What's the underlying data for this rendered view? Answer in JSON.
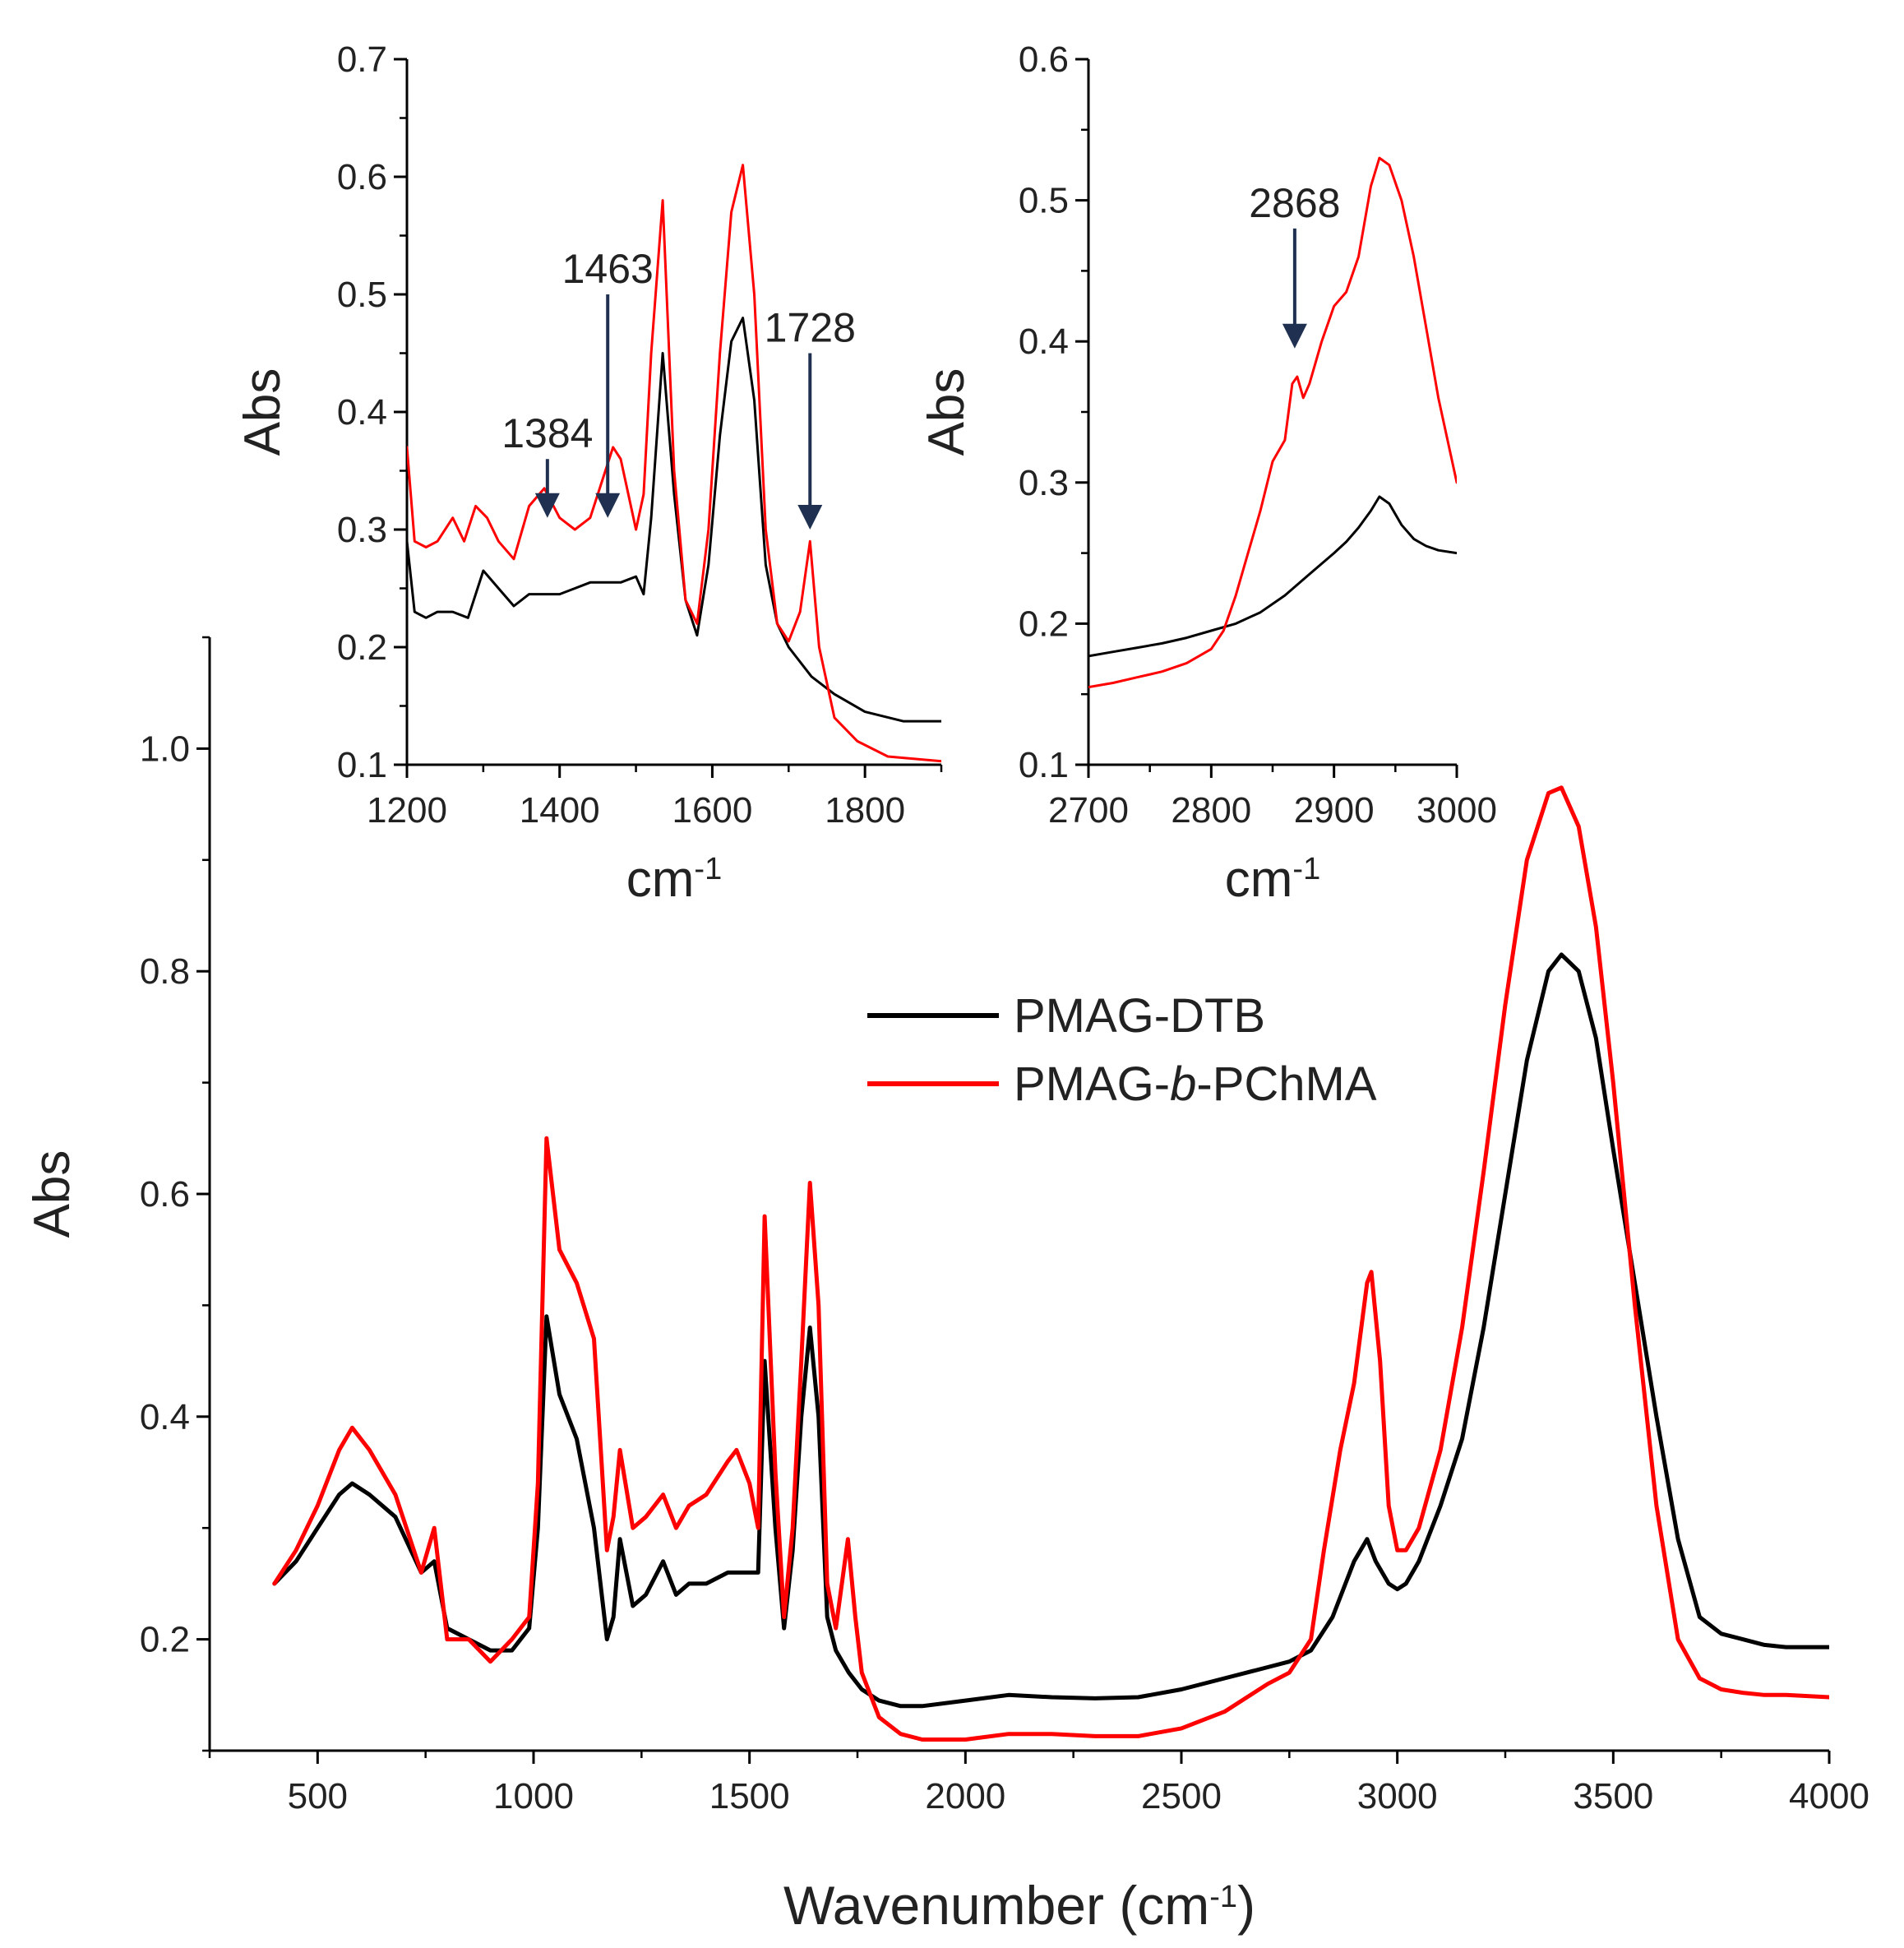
{
  "colors": {
    "PMAG-DTB": "#000000",
    "PMAG-b-PChMA": "#ff0000",
    "arrow": "#1f3050"
  },
  "chart_data": [
    {
      "id": "main",
      "type": "line",
      "title": "",
      "xlabel": "Wavenumber (cm",
      "xlabel_sup": "-1",
      "xlabel_close": ")",
      "ylabel": "Abs",
      "xlim": [
        250,
        4000
      ],
      "ylim": [
        0.1,
        1.1
      ],
      "xticks": [
        500,
        1000,
        1500,
        2000,
        2500,
        3000,
        3500,
        4000
      ],
      "xticklabels": [
        "500",
        "1000",
        "1500",
        "2000",
        "2500",
        "3000",
        "3500",
        "4000"
      ],
      "yticks": [
        0.2,
        0.4,
        0.6,
        0.8,
        1.0
      ],
      "yticklabels": [
        "0.2",
        "0.4",
        "0.6",
        "0.8",
        "1.0"
      ],
      "legend": {
        "position": "center-right",
        "entries": [
          {
            "series": "PMAG-DTB",
            "parts": [
              "PMAG-DTB"
            ]
          },
          {
            "series": "PMAG-b-PChMA",
            "parts": [
              "PMAG-",
              "b",
              "-PChMA"
            ]
          }
        ]
      },
      "series": [
        {
          "name": "PMAG-DTB",
          "x": [
            400,
            450,
            500,
            550,
            580,
            620,
            680,
            740,
            770,
            800,
            850,
            900,
            950,
            990,
            1010,
            1030,
            1060,
            1100,
            1140,
            1170,
            1185,
            1200,
            1230,
            1260,
            1300,
            1330,
            1360,
            1400,
            1450,
            1500,
            1520,
            1535,
            1560,
            1580,
            1600,
            1620,
            1640,
            1660,
            1680,
            1700,
            1730,
            1760,
            1800,
            1850,
            1900,
            2000,
            2100,
            2200,
            2300,
            2400,
            2500,
            2600,
            2700,
            2750,
            2800,
            2850,
            2900,
            2930,
            2950,
            2980,
            3000,
            3020,
            3050,
            3100,
            3150,
            3200,
            3250,
            3300,
            3350,
            3380,
            3420,
            3460,
            3500,
            3550,
            3600,
            3650,
            3700,
            3750,
            3800,
            3850,
            3900,
            4000
          ],
          "y": [
            0.25,
            0.27,
            0.3,
            0.33,
            0.34,
            0.33,
            0.31,
            0.26,
            0.27,
            0.21,
            0.2,
            0.19,
            0.19,
            0.21,
            0.3,
            0.49,
            0.42,
            0.38,
            0.3,
            0.2,
            0.22,
            0.29,
            0.23,
            0.24,
            0.27,
            0.24,
            0.25,
            0.25,
            0.26,
            0.26,
            0.26,
            0.45,
            0.3,
            0.21,
            0.28,
            0.4,
            0.48,
            0.4,
            0.22,
            0.19,
            0.17,
            0.155,
            0.145,
            0.14,
            0.14,
            0.145,
            0.15,
            0.148,
            0.147,
            0.148,
            0.155,
            0.165,
            0.175,
            0.18,
            0.19,
            0.22,
            0.27,
            0.29,
            0.27,
            0.25,
            0.245,
            0.25,
            0.27,
            0.32,
            0.38,
            0.48,
            0.6,
            0.72,
            0.8,
            0.815,
            0.8,
            0.74,
            0.64,
            0.52,
            0.4,
            0.29,
            0.22,
            0.205,
            0.2,
            0.195,
            0.193,
            0.193
          ]
        },
        {
          "name": "PMAG-b-PChMA",
          "x": [
            400,
            450,
            500,
            550,
            580,
            620,
            680,
            740,
            770,
            800,
            850,
            900,
            950,
            990,
            1010,
            1030,
            1060,
            1100,
            1140,
            1170,
            1185,
            1200,
            1230,
            1260,
            1300,
            1330,
            1360,
            1400,
            1450,
            1470,
            1500,
            1520,
            1535,
            1560,
            1580,
            1600,
            1620,
            1640,
            1660,
            1680,
            1700,
            1728,
            1745,
            1760,
            1800,
            1850,
            1900,
            2000,
            2100,
            2200,
            2300,
            2400,
            2500,
            2600,
            2700,
            2750,
            2800,
            2830,
            2868,
            2900,
            2930,
            2940,
            2960,
            2980,
            3000,
            3020,
            3050,
            3100,
            3150,
            3200,
            3250,
            3300,
            3350,
            3380,
            3420,
            3460,
            3500,
            3550,
            3600,
            3650,
            3700,
            3750,
            3800,
            3850,
            3900,
            4000
          ],
          "y": [
            0.25,
            0.28,
            0.32,
            0.37,
            0.39,
            0.37,
            0.33,
            0.26,
            0.3,
            0.2,
            0.2,
            0.18,
            0.2,
            0.22,
            0.34,
            0.65,
            0.55,
            0.52,
            0.47,
            0.28,
            0.31,
            0.37,
            0.3,
            0.31,
            0.33,
            0.3,
            0.32,
            0.33,
            0.36,
            0.37,
            0.34,
            0.3,
            0.58,
            0.35,
            0.22,
            0.3,
            0.45,
            0.61,
            0.5,
            0.25,
            0.21,
            0.29,
            0.22,
            0.17,
            0.13,
            0.115,
            0.11,
            0.11,
            0.115,
            0.115,
            0.113,
            0.113,
            0.12,
            0.135,
            0.16,
            0.17,
            0.2,
            0.28,
            0.37,
            0.43,
            0.52,
            0.53,
            0.45,
            0.32,
            0.28,
            0.28,
            0.3,
            0.37,
            0.48,
            0.62,
            0.77,
            0.9,
            0.96,
            0.965,
            0.93,
            0.84,
            0.7,
            0.5,
            0.32,
            0.2,
            0.165,
            0.155,
            0.152,
            0.15,
            0.15,
            0.148
          ]
        }
      ]
    },
    {
      "id": "inset1",
      "type": "line",
      "xlabel": "cm",
      "xlabel_sup": "-1",
      "ylabel": "Abs",
      "xlim": [
        1200,
        1900
      ],
      "ylim": [
        0.1,
        0.7
      ],
      "xticks": [
        1200,
        1400,
        1600,
        1800
      ],
      "xticklabels": [
        "1200",
        "1400",
        "1600",
        "1800"
      ],
      "yticks": [
        0.1,
        0.2,
        0.3,
        0.4,
        0.5,
        0.6,
        0.7
      ],
      "yticklabels": [
        "0.1",
        "0.2",
        "0.3",
        "0.4",
        "0.5",
        "0.6",
        "0.7"
      ],
      "annotations": [
        {
          "label": "1384",
          "x": 1384,
          "arrow_top": 0.36,
          "arrow_bottom": 0.31
        },
        {
          "label": "1463",
          "x": 1463,
          "arrow_top": 0.5,
          "arrow_bottom": 0.31
        },
        {
          "label": "1728",
          "x": 1728,
          "arrow_top": 0.45,
          "arrow_bottom": 0.3
        }
      ],
      "series": [
        {
          "name": "PMAG-DTB",
          "x": [
            1200,
            1210,
            1225,
            1240,
            1260,
            1280,
            1300,
            1320,
            1340,
            1360,
            1380,
            1400,
            1420,
            1440,
            1460,
            1480,
            1500,
            1510,
            1520,
            1535,
            1550,
            1565,
            1580,
            1595,
            1610,
            1625,
            1640,
            1655,
            1670,
            1685,
            1700,
            1730,
            1760,
            1800,
            1850,
            1900
          ],
          "y": [
            0.29,
            0.23,
            0.225,
            0.23,
            0.23,
            0.225,
            0.265,
            0.25,
            0.235,
            0.245,
            0.245,
            0.245,
            0.25,
            0.255,
            0.255,
            0.255,
            0.26,
            0.245,
            0.31,
            0.45,
            0.33,
            0.24,
            0.21,
            0.27,
            0.38,
            0.46,
            0.48,
            0.41,
            0.27,
            0.22,
            0.2,
            0.175,
            0.16,
            0.145,
            0.137,
            0.137
          ]
        },
        {
          "name": "PMAG-b-PChMA",
          "x": [
            1200,
            1210,
            1225,
            1240,
            1260,
            1275,
            1290,
            1305,
            1320,
            1340,
            1360,
            1380,
            1400,
            1420,
            1440,
            1460,
            1470,
            1480,
            1500,
            1510,
            1520,
            1535,
            1550,
            1565,
            1580,
            1595,
            1610,
            1625,
            1640,
            1655,
            1670,
            1685,
            1700,
            1715,
            1728,
            1740,
            1760,
            1790,
            1830,
            1900
          ],
          "y": [
            0.37,
            0.29,
            0.285,
            0.29,
            0.31,
            0.29,
            0.32,
            0.31,
            0.29,
            0.275,
            0.32,
            0.335,
            0.31,
            0.3,
            0.31,
            0.35,
            0.37,
            0.36,
            0.3,
            0.33,
            0.45,
            0.58,
            0.35,
            0.24,
            0.22,
            0.3,
            0.45,
            0.57,
            0.61,
            0.5,
            0.3,
            0.22,
            0.205,
            0.23,
            0.29,
            0.2,
            0.14,
            0.12,
            0.107,
            0.103
          ]
        }
      ]
    },
    {
      "id": "inset2",
      "type": "line",
      "xlabel": "cm",
      "xlabel_sup": "-1",
      "ylabel": "Abs",
      "xlim": [
        2700,
        3000
      ],
      "ylim": [
        0.1,
        0.6
      ],
      "xticks": [
        2700,
        2800,
        2900,
        3000
      ],
      "xticklabels": [
        "2700",
        "2800",
        "2900",
        "3000"
      ],
      "yticks": [
        0.1,
        0.2,
        0.3,
        0.4,
        0.5,
        0.6
      ],
      "yticklabels": [
        "0.1",
        "0.2",
        "0.3",
        "0.4",
        "0.5",
        "0.6"
      ],
      "annotations": [
        {
          "label": "2868",
          "x": 2868,
          "arrow_top": 0.48,
          "arrow_bottom": 0.395
        }
      ],
      "series": [
        {
          "name": "PMAG-DTB",
          "x": [
            2700,
            2720,
            2740,
            2760,
            2780,
            2800,
            2820,
            2840,
            2860,
            2880,
            2900,
            2910,
            2920,
            2930,
            2937,
            2945,
            2955,
            2965,
            2975,
            2985,
            3000
          ],
          "y": [
            0.177,
            0.18,
            0.183,
            0.186,
            0.19,
            0.195,
            0.2,
            0.208,
            0.22,
            0.235,
            0.25,
            0.258,
            0.268,
            0.28,
            0.29,
            0.285,
            0.27,
            0.26,
            0.255,
            0.252,
            0.25
          ]
        },
        {
          "name": "PMAG-b-PChMA",
          "x": [
            2700,
            2720,
            2740,
            2760,
            2780,
            2800,
            2810,
            2820,
            2830,
            2840,
            2850,
            2860,
            2866,
            2870,
            2875,
            2880,
            2890,
            2900,
            2910,
            2920,
            2930,
            2937,
            2945,
            2955,
            2965,
            2975,
            2985,
            3000
          ],
          "y": [
            0.155,
            0.158,
            0.162,
            0.166,
            0.172,
            0.182,
            0.195,
            0.22,
            0.25,
            0.28,
            0.315,
            0.33,
            0.37,
            0.375,
            0.36,
            0.37,
            0.4,
            0.425,
            0.435,
            0.46,
            0.51,
            0.53,
            0.525,
            0.5,
            0.46,
            0.41,
            0.36,
            0.3
          ]
        }
      ]
    }
  ]
}
